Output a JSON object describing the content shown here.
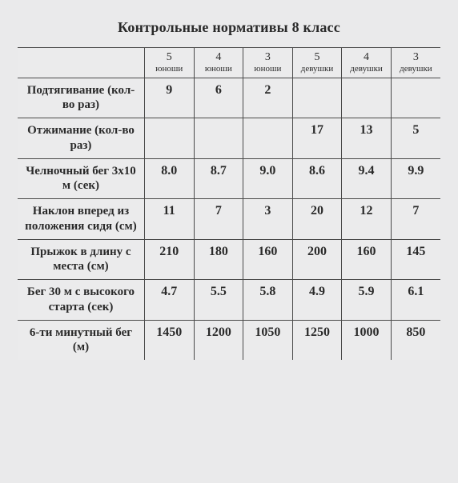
{
  "title": "Контрольные нормативы 8 класс",
  "columns": [
    {
      "grade": "5",
      "group": "юноши"
    },
    {
      "grade": "4",
      "group": "юноши"
    },
    {
      "grade": "3",
      "group": "юноши"
    },
    {
      "grade": "5",
      "group": "девушки"
    },
    {
      "grade": "4",
      "group": "девушки"
    },
    {
      "grade": "3",
      "group": "девушки"
    }
  ],
  "rows": [
    {
      "label": "Подтягивание (кол-во раз)",
      "v": [
        "9",
        "6",
        "2",
        "",
        "",
        ""
      ]
    },
    {
      "label": "Отжимание (кол-во раз)",
      "v": [
        "",
        "",
        "",
        "17",
        "13",
        "5"
      ]
    },
    {
      "label": "Челночный бег 3х10 м (сек)",
      "v": [
        "8.0",
        "8.7",
        "9.0",
        "8.6",
        "9.4",
        "9.9"
      ]
    },
    {
      "label": "Наклон вперед из положения сидя (см)",
      "v": [
        "11",
        "7",
        "3",
        "20",
        "12",
        "7"
      ]
    },
    {
      "label": "Прыжок в длину с места (см)",
      "v": [
        "210",
        "180",
        "160",
        "200",
        "160",
        "145"
      ]
    },
    {
      "label": "Бег 30 м с высокого старта (сек)",
      "v": [
        "4.7",
        "5.5",
        "5.8",
        "4.9",
        "5.9",
        "6.1"
      ]
    },
    {
      "label": "6-ти минутный бег (м)",
      "v": [
        "1450",
        "1200",
        "1050",
        "1250",
        "1000",
        "850"
      ]
    }
  ]
}
